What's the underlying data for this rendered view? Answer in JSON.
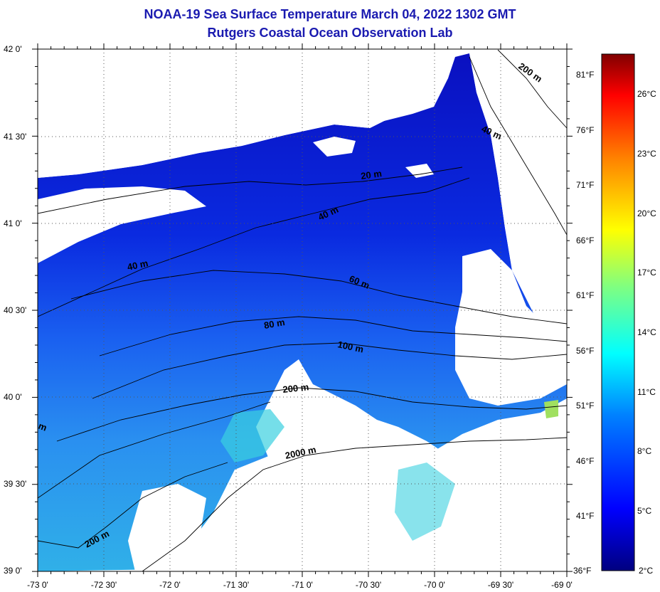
{
  "header": {
    "title": "NOAA-19 Sea Surface Temperature March 04, 2022 1302 GMT",
    "subtitle": "Rutgers Coastal Ocean Observation Lab"
  },
  "map": {
    "lat_labels": [
      "42 0'",
      "41 30'",
      "41 0'",
      "40 30'",
      "40 0'",
      "39 30'",
      "39 0'"
    ],
    "lon_labels": [
      "-73 0'",
      "-72 30'",
      "-72 0'",
      "-71 30'",
      "-71 0'",
      "-70 30'",
      "-70 0'",
      "-69 30'",
      "-69 0'"
    ],
    "fahrenheit_labels": [
      "81°F",
      "76°F",
      "71°F",
      "66°F",
      "61°F",
      "56°F",
      "51°F",
      "46°F",
      "41°F",
      "36°F"
    ],
    "contour_labels": [
      "200 m",
      "40 m",
      "20 m",
      "40 m",
      "40 m",
      "60 m",
      "80 m",
      "100 m",
      "200 m",
      "m",
      "2000 m",
      "200 m"
    ]
  },
  "colorbar": {
    "labels": [
      "26°C",
      "23°C",
      "20°C",
      "17°C",
      "14°C",
      "11°C",
      "8°C",
      "5°C",
      "2°C"
    ],
    "colors": [
      "#000080",
      "#0000ff",
      "#0080ff",
      "#00ffff",
      "#80ff80",
      "#ffff00",
      "#ff8000",
      "#ff0000",
      "#800000"
    ]
  },
  "colors": {
    "title": "#1a1ab0",
    "land": "#ffffff",
    "deep_water": "#0a14c8",
    "mid_water": "#1a5aff",
    "warm_water": "#2ab8e8"
  }
}
